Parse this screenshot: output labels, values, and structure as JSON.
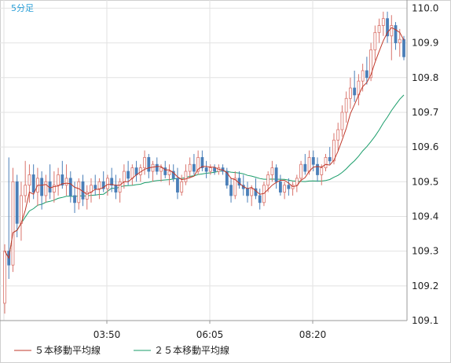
{
  "chart_data": {
    "type": "candlestick",
    "timeframe_label": "5分足",
    "x_tick_labels": [
      "03:50",
      "06:05",
      "08:20"
    ],
    "y_tick_labels": [
      "110.0",
      "109.9",
      "109.8",
      "109.7",
      "109.6",
      "109.5",
      "109.4",
      "109.3",
      "109.2",
      "109.1"
    ],
    "ylim": [
      109.1,
      110.01
    ],
    "grid": true,
    "legend": [
      {
        "name": "５本移動平均線",
        "color": "#c0392b"
      },
      {
        "name": "２５本移動平均線",
        "color": "#1a9d6a"
      }
    ],
    "colors": {
      "up": "#d9736b",
      "down": "#4a7fb8",
      "ma5": "#c0392b",
      "ma25": "#1a9d6a"
    },
    "candles": [
      [
        109.15,
        109.32,
        109.12,
        109.3
      ],
      [
        109.3,
        109.57,
        109.22,
        109.26
      ],
      [
        109.26,
        109.54,
        109.24,
        109.5
      ],
      [
        109.5,
        109.52,
        109.34,
        109.38
      ],
      [
        109.38,
        109.5,
        109.33,
        109.46
      ],
      [
        109.46,
        109.56,
        109.44,
        109.49
      ],
      [
        109.49,
        109.55,
        109.44,
        109.52
      ],
      [
        109.52,
        109.55,
        109.45,
        109.47
      ],
      [
        109.47,
        109.54,
        109.43,
        109.51
      ],
      [
        109.51,
        109.53,
        109.42,
        109.46
      ],
      [
        109.46,
        109.52,
        109.44,
        109.5
      ],
      [
        109.5,
        109.55,
        109.45,
        109.47
      ],
      [
        109.47,
        109.53,
        109.44,
        109.49
      ],
      [
        109.49,
        109.54,
        109.46,
        109.52
      ],
      [
        109.52,
        109.56,
        109.48,
        109.49
      ],
      [
        109.49,
        109.55,
        109.46,
        109.51
      ],
      [
        109.51,
        109.53,
        109.44,
        109.46
      ],
      [
        109.46,
        109.5,
        109.41,
        109.44
      ],
      [
        109.44,
        109.51,
        109.42,
        109.5
      ],
      [
        109.5,
        109.52,
        109.43,
        109.45
      ],
      [
        109.45,
        109.49,
        109.42,
        109.47
      ],
      [
        109.47,
        109.51,
        109.44,
        109.49
      ],
      [
        109.49,
        109.52,
        109.46,
        109.48
      ],
      [
        109.48,
        109.51,
        109.45,
        109.5
      ],
      [
        109.5,
        109.53,
        109.47,
        109.48
      ],
      [
        109.48,
        109.52,
        109.46,
        109.51
      ],
      [
        109.51,
        109.54,
        109.47,
        109.49
      ],
      [
        109.49,
        109.52,
        109.45,
        109.47
      ],
      [
        109.47,
        109.51,
        109.44,
        109.5
      ],
      [
        109.5,
        109.55,
        109.48,
        109.53
      ],
      [
        109.53,
        109.56,
        109.49,
        109.51
      ],
      [
        109.51,
        109.55,
        109.49,
        109.54
      ],
      [
        109.54,
        109.56,
        109.5,
        109.52
      ],
      [
        109.52,
        109.55,
        109.5,
        109.54
      ],
      [
        109.54,
        109.59,
        109.52,
        109.57
      ],
      [
        109.57,
        109.58,
        109.51,
        109.53
      ],
      [
        109.53,
        109.56,
        109.5,
        109.55
      ],
      [
        109.55,
        109.57,
        109.52,
        109.53
      ],
      [
        109.53,
        109.55,
        109.5,
        109.54
      ],
      [
        109.54,
        109.56,
        109.51,
        109.52
      ],
      [
        109.52,
        109.55,
        109.49,
        109.53
      ],
      [
        109.53,
        109.55,
        109.5,
        109.51
      ],
      [
        109.51,
        109.54,
        109.45,
        109.47
      ],
      [
        109.47,
        109.52,
        109.46,
        109.5
      ],
      [
        109.5,
        109.55,
        109.49,
        109.53
      ],
      [
        109.53,
        109.57,
        109.51,
        109.55
      ],
      [
        109.55,
        109.58,
        109.52,
        109.53
      ],
      [
        109.53,
        109.59,
        109.52,
        109.57
      ],
      [
        109.57,
        109.59,
        109.53,
        109.54
      ],
      [
        109.54,
        109.56,
        109.51,
        109.53
      ],
      [
        109.53,
        109.55,
        109.52,
        109.54
      ],
      [
        109.54,
        109.55,
        109.52,
        109.53
      ],
      [
        109.53,
        109.55,
        109.52,
        109.54
      ],
      [
        109.54,
        109.55,
        109.52,
        109.53
      ],
      [
        109.53,
        109.54,
        109.48,
        109.49
      ],
      [
        109.49,
        109.51,
        109.44,
        109.46
      ],
      [
        109.46,
        109.53,
        109.45,
        109.51
      ],
      [
        109.51,
        109.53,
        109.48,
        109.49
      ],
      [
        109.49,
        109.52,
        109.46,
        109.48
      ],
      [
        109.48,
        109.5,
        109.44,
        109.46
      ],
      [
        109.46,
        109.49,
        109.43,
        109.48
      ],
      [
        109.48,
        109.51,
        109.45,
        109.46
      ],
      [
        109.46,
        109.48,
        109.42,
        109.44
      ],
      [
        109.44,
        109.5,
        109.43,
        109.49
      ],
      [
        109.49,
        109.53,
        109.47,
        109.52
      ],
      [
        109.52,
        109.56,
        109.5,
        109.54
      ],
      [
        109.54,
        109.55,
        109.48,
        109.5
      ],
      [
        109.5,
        109.52,
        109.46,
        109.47
      ],
      [
        109.47,
        109.5,
        109.45,
        109.49
      ],
      [
        109.49,
        109.51,
        109.46,
        109.48
      ],
      [
        109.48,
        109.5,
        109.46,
        109.49
      ],
      [
        109.49,
        109.52,
        109.47,
        109.51
      ],
      [
        109.51,
        109.56,
        109.5,
        109.55
      ],
      [
        109.55,
        109.58,
        109.52,
        109.53
      ],
      [
        109.53,
        109.59,
        109.52,
        109.57
      ],
      [
        109.57,
        109.59,
        109.53,
        109.55
      ],
      [
        109.55,
        109.57,
        109.5,
        109.52
      ],
      [
        109.52,
        109.55,
        109.49,
        109.54
      ],
      [
        109.54,
        109.58,
        109.53,
        109.57
      ],
      [
        109.57,
        109.6,
        109.55,
        109.56
      ],
      [
        109.56,
        109.64,
        109.55,
        109.62
      ],
      [
        109.62,
        109.67,
        109.59,
        109.65
      ],
      [
        109.65,
        109.72,
        109.63,
        109.7
      ],
      [
        109.7,
        109.76,
        109.67,
        109.74
      ],
      [
        109.74,
        109.8,
        109.71,
        109.77
      ],
      [
        109.77,
        109.82,
        109.73,
        109.75
      ],
      [
        109.75,
        109.81,
        109.72,
        109.79
      ],
      [
        109.79,
        109.84,
        109.76,
        109.82
      ],
      [
        109.82,
        109.86,
        109.78,
        109.8
      ],
      [
        109.8,
        109.9,
        109.79,
        109.88
      ],
      [
        109.88,
        109.95,
        109.85,
        109.93
      ],
      [
        109.93,
        109.97,
        109.9,
        109.95
      ],
      [
        109.95,
        109.99,
        109.92,
        109.97
      ],
      [
        109.97,
        109.99,
        109.9,
        109.92
      ],
      [
        109.92,
        109.98,
        109.85,
        109.95
      ],
      [
        109.95,
        109.96,
        109.88,
        109.9
      ],
      [
        109.9,
        109.94,
        109.86,
        109.91
      ],
      [
        109.91,
        109.92,
        109.85,
        109.86
      ]
    ]
  }
}
